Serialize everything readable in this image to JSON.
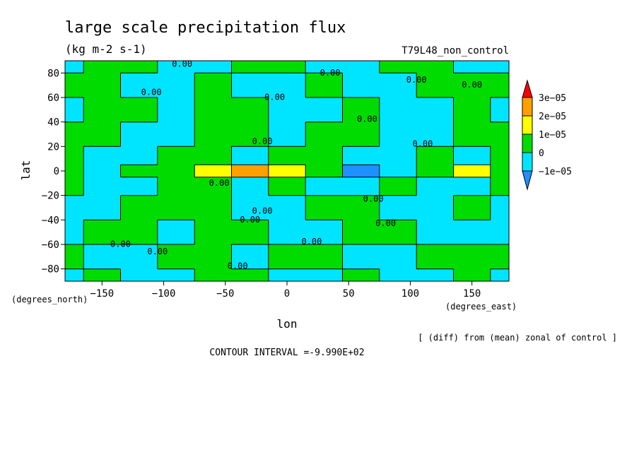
{
  "chart_data": {
    "type": "heatmap",
    "title": "large scale precipitation flux",
    "units": "(kg m-2 s-1)",
    "run_label": "T79L48_non_control",
    "xlabel": "lon",
    "ylabel": "lat",
    "x_units": "(degrees_east)",
    "y_units": "(degrees_north)",
    "xlim": [
      -180,
      180
    ],
    "ylim": [
      -90,
      90
    ],
    "x_ticks": [
      -150,
      -100,
      -50,
      0,
      50,
      100,
      150
    ],
    "y_ticks": [
      80,
      60,
      40,
      20,
      0,
      -20,
      -40,
      -60,
      -80
    ],
    "x_tick_labels": [
      "−150",
      "−100",
      "−50",
      "0",
      "50",
      "100",
      "150"
    ],
    "y_tick_labels": [
      "80",
      "60",
      "40",
      "20",
      "0",
      "−20",
      "−40",
      "−60",
      "−80"
    ],
    "colorbar": {
      "levels": [
        -2e-05,
        -1e-05,
        0,
        1e-05,
        2e-05,
        3e-05
      ],
      "tick_labels": [
        "−2e−05",
        "−1e−05",
        "0",
        "1e−05",
        "2e−05",
        "3e−05"
      ],
      "colors": [
        "#1e90ff",
        "#00e5ff",
        "#00dc00",
        "#ffff00",
        "#ffa000",
        "#ff0000"
      ],
      "placement": "right"
    },
    "contour_label": "0.00",
    "contour_interval_text": "CONTOUR INTERVAL =-9.990E+02",
    "diff_note": "[ (diff) from (mean) zonal of control ]",
    "field": {
      "lon": [
        -180,
        -150,
        -120,
        -90,
        -60,
        -30,
        0,
        30,
        60,
        90,
        120,
        150,
        180
      ],
      "lat": [
        90,
        70,
        50,
        30,
        10,
        0,
        -10,
        -30,
        -50,
        -70,
        -90
      ],
      "bins": [
        [
          1,
          2,
          2,
          1,
          1,
          2,
          2,
          1,
          1,
          2,
          2,
          1,
          1
        ],
        [
          2,
          2,
          1,
          1,
          2,
          1,
          1,
          2,
          1,
          1,
          2,
          2,
          2
        ],
        [
          1,
          2,
          2,
          1,
          2,
          2,
          1,
          1,
          2,
          1,
          1,
          2,
          1
        ],
        [
          2,
          2,
          1,
          1,
          2,
          2,
          1,
          2,
          2,
          1,
          1,
          2,
          2
        ],
        [
          2,
          1,
          1,
          2,
          2,
          1,
          2,
          2,
          1,
          1,
          2,
          1,
          2
        ],
        [
          2,
          1,
          2,
          2,
          3,
          4,
          3,
          2,
          0,
          1,
          2,
          3,
          2
        ],
        [
          2,
          1,
          1,
          2,
          2,
          1,
          2,
          1,
          1,
          2,
          1,
          1,
          2
        ],
        [
          1,
          1,
          2,
          2,
          2,
          1,
          1,
          2,
          2,
          1,
          1,
          2,
          1
        ],
        [
          1,
          2,
          2,
          1,
          2,
          2,
          1,
          1,
          2,
          2,
          1,
          1,
          1
        ],
        [
          2,
          1,
          1,
          2,
          2,
          1,
          2,
          2,
          1,
          1,
          2,
          2,
          2
        ],
        [
          1,
          2,
          1,
          1,
          2,
          2,
          1,
          1,
          2,
          1,
          1,
          2,
          1
        ]
      ]
    }
  }
}
